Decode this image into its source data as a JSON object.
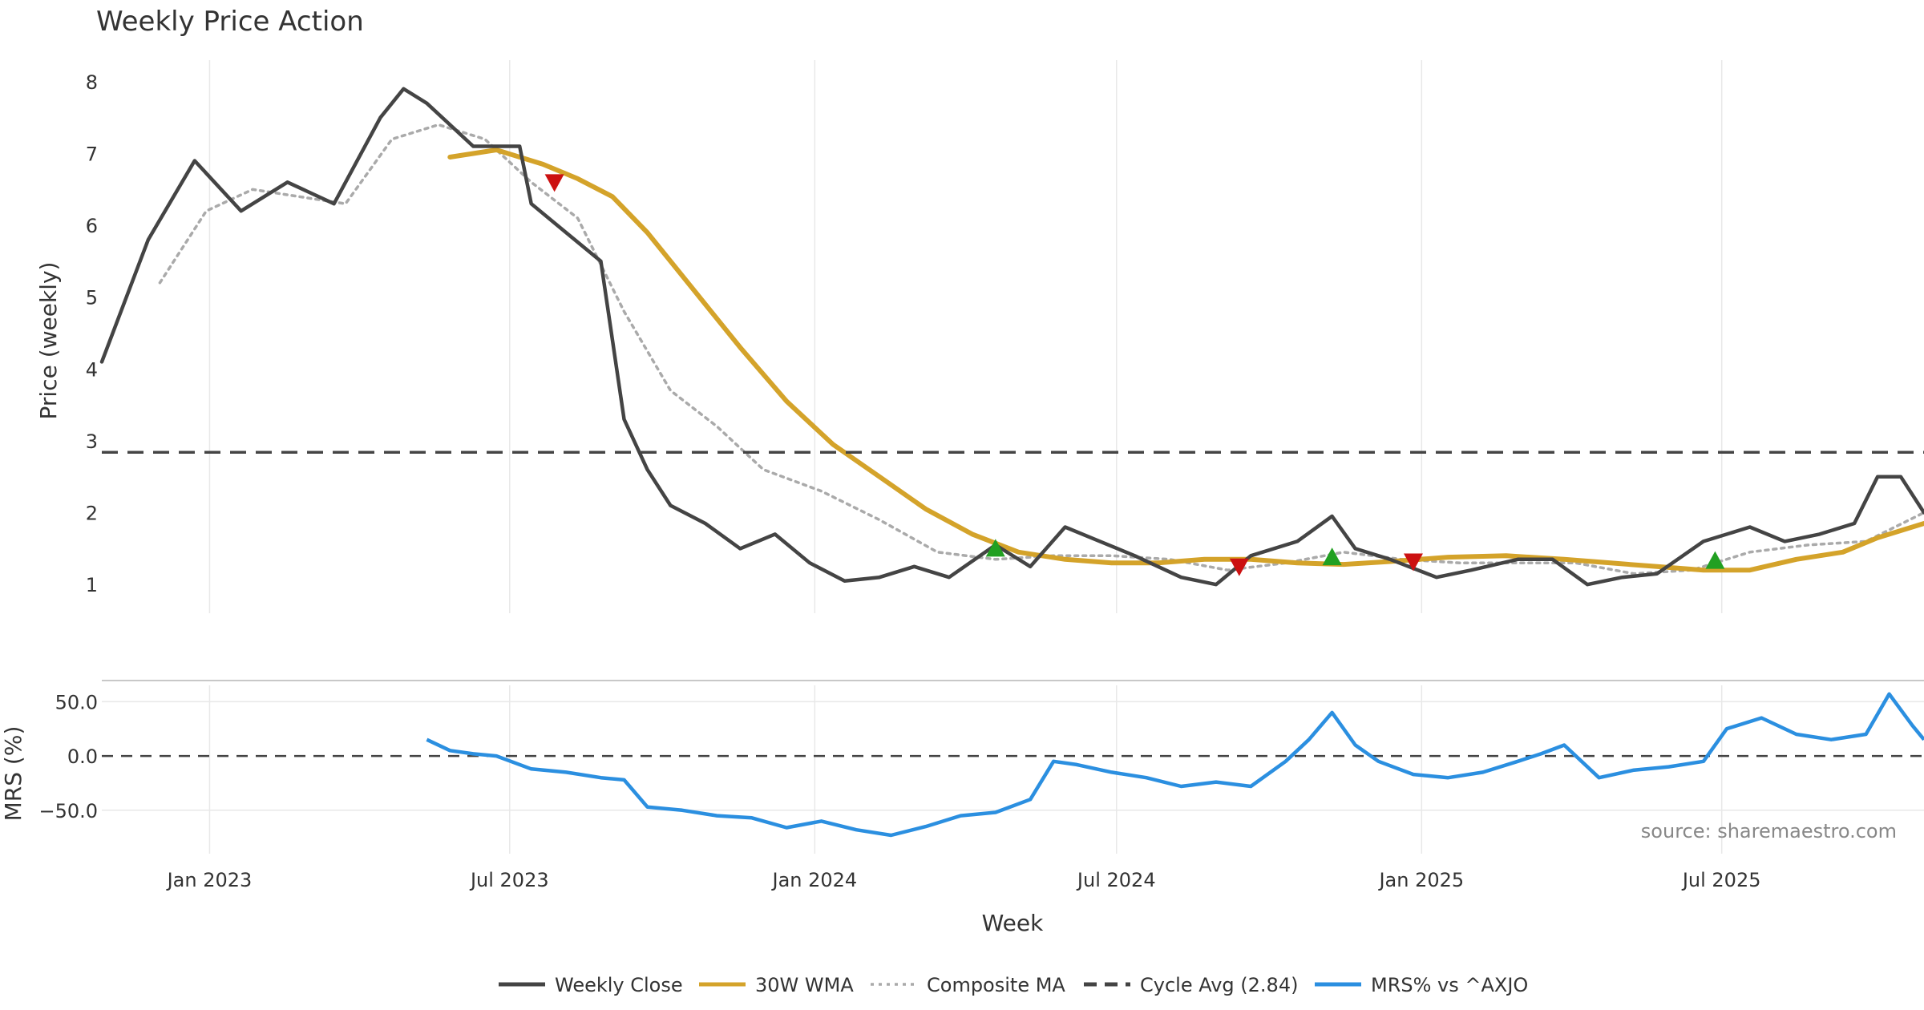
{
  "title": "Weekly Price Action",
  "source": "source: sharemaestro.com",
  "xlabel": "Week",
  "x_ticks": [
    {
      "label": "Jan 2023",
      "date": "2023-01-01"
    },
    {
      "label": "Jul 2023",
      "date": "2023-07-01"
    },
    {
      "label": "Jan 2024",
      "date": "2024-01-01"
    },
    {
      "label": "Jul 2024",
      "date": "2024-07-01"
    },
    {
      "label": "Jan 2025",
      "date": "2025-01-01"
    },
    {
      "label": "Jul 2025",
      "date": "2025-07-01"
    }
  ],
  "colors": {
    "weekly_close": "#444444",
    "wma": "#d4a32a",
    "composite": "#aaaaaa",
    "cycle": "#444444",
    "mrs": "#2b8fe0",
    "buy_signal": "#22a022",
    "sell_signal": "#cc1111"
  },
  "legend": [
    {
      "key": "weekly_close",
      "label": "Weekly Close",
      "style": "solid"
    },
    {
      "key": "wma",
      "label": "30W WMA",
      "style": "solid"
    },
    {
      "key": "composite",
      "label": "Composite MA",
      "style": "dotted"
    },
    {
      "key": "cycle",
      "label": "Cycle Avg (2.84)",
      "style": "dashed"
    },
    {
      "key": "mrs",
      "label": "MRS% vs ^AXJO",
      "style": "solid"
    }
  ],
  "chart_data": [
    {
      "type": "line",
      "ylabel": "Price (weekly)",
      "ylim": [
        0.6,
        8.3
      ],
      "y_ticks": [
        1,
        2,
        3,
        4,
        5,
        6,
        7,
        8
      ],
      "x_range": [
        "2022-10-28",
        "2025-10-31"
      ],
      "grid": true,
      "series": [
        {
          "name": "Weekly Close",
          "key": "weekly_close",
          "x": [
            "2022-10-28",
            "2022-11-25",
            "2022-12-23",
            "2023-01-20",
            "2023-02-17",
            "2023-03-17",
            "2023-04-14",
            "2023-04-28",
            "2023-05-12",
            "2023-06-09",
            "2023-07-07",
            "2023-07-14",
            "2023-08-04",
            "2023-08-25",
            "2023-09-08",
            "2023-09-22",
            "2023-10-06",
            "2023-10-27",
            "2023-11-17",
            "2023-12-08",
            "2023-12-29",
            "2024-01-19",
            "2024-02-09",
            "2024-03-01",
            "2024-03-22",
            "2024-04-19",
            "2024-05-10",
            "2024-05-31",
            "2024-06-21",
            "2024-07-12",
            "2024-08-09",
            "2024-08-30",
            "2024-09-20",
            "2024-10-18",
            "2024-11-08",
            "2024-11-22",
            "2024-12-13",
            "2025-01-10",
            "2025-01-31",
            "2025-02-28",
            "2025-03-21",
            "2025-04-11",
            "2025-05-02",
            "2025-05-23",
            "2025-06-20",
            "2025-07-18",
            "2025-08-08",
            "2025-08-29",
            "2025-09-19",
            "2025-10-03",
            "2025-10-17",
            "2025-10-31"
          ],
          "values": [
            4.1,
            5.8,
            6.9,
            6.2,
            6.6,
            6.3,
            7.5,
            7.9,
            7.7,
            7.1,
            7.1,
            6.3,
            5.9,
            5.5,
            3.3,
            2.6,
            2.1,
            1.85,
            1.5,
            1.7,
            1.3,
            1.05,
            1.1,
            1.25,
            1.1,
            1.55,
            1.25,
            1.8,
            1.6,
            1.4,
            1.1,
            1.0,
            1.4,
            1.6,
            1.95,
            1.5,
            1.35,
            1.1,
            1.2,
            1.35,
            1.35,
            1.0,
            1.1,
            1.15,
            1.6,
            1.8,
            1.6,
            1.7,
            1.85,
            2.5,
            2.5,
            2.0
          ]
        },
        {
          "name": "30W WMA",
          "key": "wma",
          "x": [
            "2023-05-26",
            "2023-06-23",
            "2023-07-21",
            "2023-08-11",
            "2023-09-01",
            "2023-09-22",
            "2023-10-20",
            "2023-11-17",
            "2023-12-15",
            "2024-01-12",
            "2024-02-09",
            "2024-03-08",
            "2024-04-05",
            "2024-05-03",
            "2024-05-31",
            "2024-06-28",
            "2024-07-26",
            "2024-08-23",
            "2024-09-20",
            "2024-10-18",
            "2024-11-15",
            "2024-12-13",
            "2025-01-17",
            "2025-02-21",
            "2025-03-28",
            "2025-04-25",
            "2025-05-23",
            "2025-06-20",
            "2025-07-18",
            "2025-08-15",
            "2025-09-12",
            "2025-10-03",
            "2025-10-31"
          ],
          "values": [
            6.95,
            7.05,
            6.85,
            6.65,
            6.4,
            5.9,
            5.1,
            4.3,
            3.55,
            2.95,
            2.5,
            2.05,
            1.7,
            1.45,
            1.35,
            1.3,
            1.3,
            1.35,
            1.35,
            1.3,
            1.28,
            1.32,
            1.38,
            1.4,
            1.35,
            1.3,
            1.25,
            1.2,
            1.2,
            1.35,
            1.45,
            1.65,
            1.85
          ]
        },
        {
          "name": "Composite MA",
          "key": "composite",
          "x": [
            "2022-12-02",
            "2022-12-30",
            "2023-01-27",
            "2023-02-24",
            "2023-03-24",
            "2023-04-21",
            "2023-05-19",
            "2023-06-16",
            "2023-07-14",
            "2023-08-11",
            "2023-09-08",
            "2023-10-06",
            "2023-11-03",
            "2023-12-01",
            "2024-01-05",
            "2024-02-09",
            "2024-03-15",
            "2024-04-19",
            "2024-05-24",
            "2024-06-28",
            "2024-08-02",
            "2024-09-06",
            "2024-10-11",
            "2024-11-15",
            "2024-12-20",
            "2025-01-24",
            "2025-02-28",
            "2025-04-04",
            "2025-05-09",
            "2025-06-13",
            "2025-07-18",
            "2025-08-22",
            "2025-09-26",
            "2025-10-31"
          ],
          "values": [
            5.2,
            6.2,
            6.5,
            6.4,
            6.3,
            7.2,
            7.4,
            7.2,
            6.6,
            6.1,
            4.8,
            3.7,
            3.2,
            2.6,
            2.3,
            1.9,
            1.45,
            1.35,
            1.4,
            1.4,
            1.35,
            1.2,
            1.3,
            1.45,
            1.35,
            1.3,
            1.3,
            1.3,
            1.15,
            1.2,
            1.45,
            1.55,
            1.6,
            2.0
          ]
        },
        {
          "name": "Cycle Avg (2.84)",
          "key": "cycle",
          "value": 2.84
        }
      ],
      "signals": [
        {
          "type": "sell",
          "date": "2023-07-28",
          "value": 6.6
        },
        {
          "type": "buy",
          "date": "2024-04-19",
          "value": 1.5
        },
        {
          "type": "sell",
          "date": "2024-09-13",
          "value": 1.25
        },
        {
          "type": "buy",
          "date": "2024-11-08",
          "value": 1.38
        },
        {
          "type": "sell",
          "date": "2024-12-27",
          "value": 1.32
        },
        {
          "type": "buy",
          "date": "2025-06-27",
          "value": 1.33
        }
      ]
    },
    {
      "type": "line",
      "ylabel": "MRS (%)",
      "ylim": [
        -90,
        65
      ],
      "y_ticks": [
        50,
        0,
        -50
      ],
      "y_tick_labels": [
        "50.0",
        "0.0",
        "−50.0"
      ],
      "zero_line": true,
      "grid": true,
      "series": [
        {
          "name": "MRS% vs ^AXJO",
          "key": "mrs",
          "x": [
            "2023-05-12",
            "2023-05-26",
            "2023-06-09",
            "2023-06-23",
            "2023-07-14",
            "2023-08-04",
            "2023-08-25",
            "2023-09-08",
            "2023-09-22",
            "2023-10-13",
            "2023-11-03",
            "2023-11-24",
            "2023-12-15",
            "2024-01-05",
            "2024-01-26",
            "2024-02-16",
            "2024-03-08",
            "2024-03-29",
            "2024-04-19",
            "2024-05-10",
            "2024-05-24",
            "2024-06-07",
            "2024-06-28",
            "2024-07-19",
            "2024-08-09",
            "2024-08-30",
            "2024-09-20",
            "2024-10-11",
            "2024-10-25",
            "2024-11-08",
            "2024-11-22",
            "2024-12-06",
            "2024-12-27",
            "2025-01-17",
            "2025-02-07",
            "2025-02-28",
            "2025-03-14",
            "2025-03-28",
            "2025-04-18",
            "2025-05-09",
            "2025-05-30",
            "2025-06-20",
            "2025-07-04",
            "2025-07-25",
            "2025-08-15",
            "2025-09-05",
            "2025-09-26",
            "2025-10-10",
            "2025-10-24",
            "2025-10-31"
          ],
          "values": [
            15,
            5,
            2,
            0,
            -12,
            -15,
            -20,
            -22,
            -47,
            -50,
            -55,
            -57,
            -66,
            -60,
            -68,
            -73,
            -65,
            -55,
            -52,
            -40,
            -5,
            -8,
            -15,
            -20,
            -28,
            -24,
            -28,
            -5,
            15,
            40,
            10,
            -5,
            -17,
            -20,
            -15,
            -5,
            2,
            10,
            -20,
            -13,
            -10,
            -5,
            25,
            35,
            20,
            15,
            20,
            57,
            28,
            15
          ]
        }
      ]
    }
  ]
}
